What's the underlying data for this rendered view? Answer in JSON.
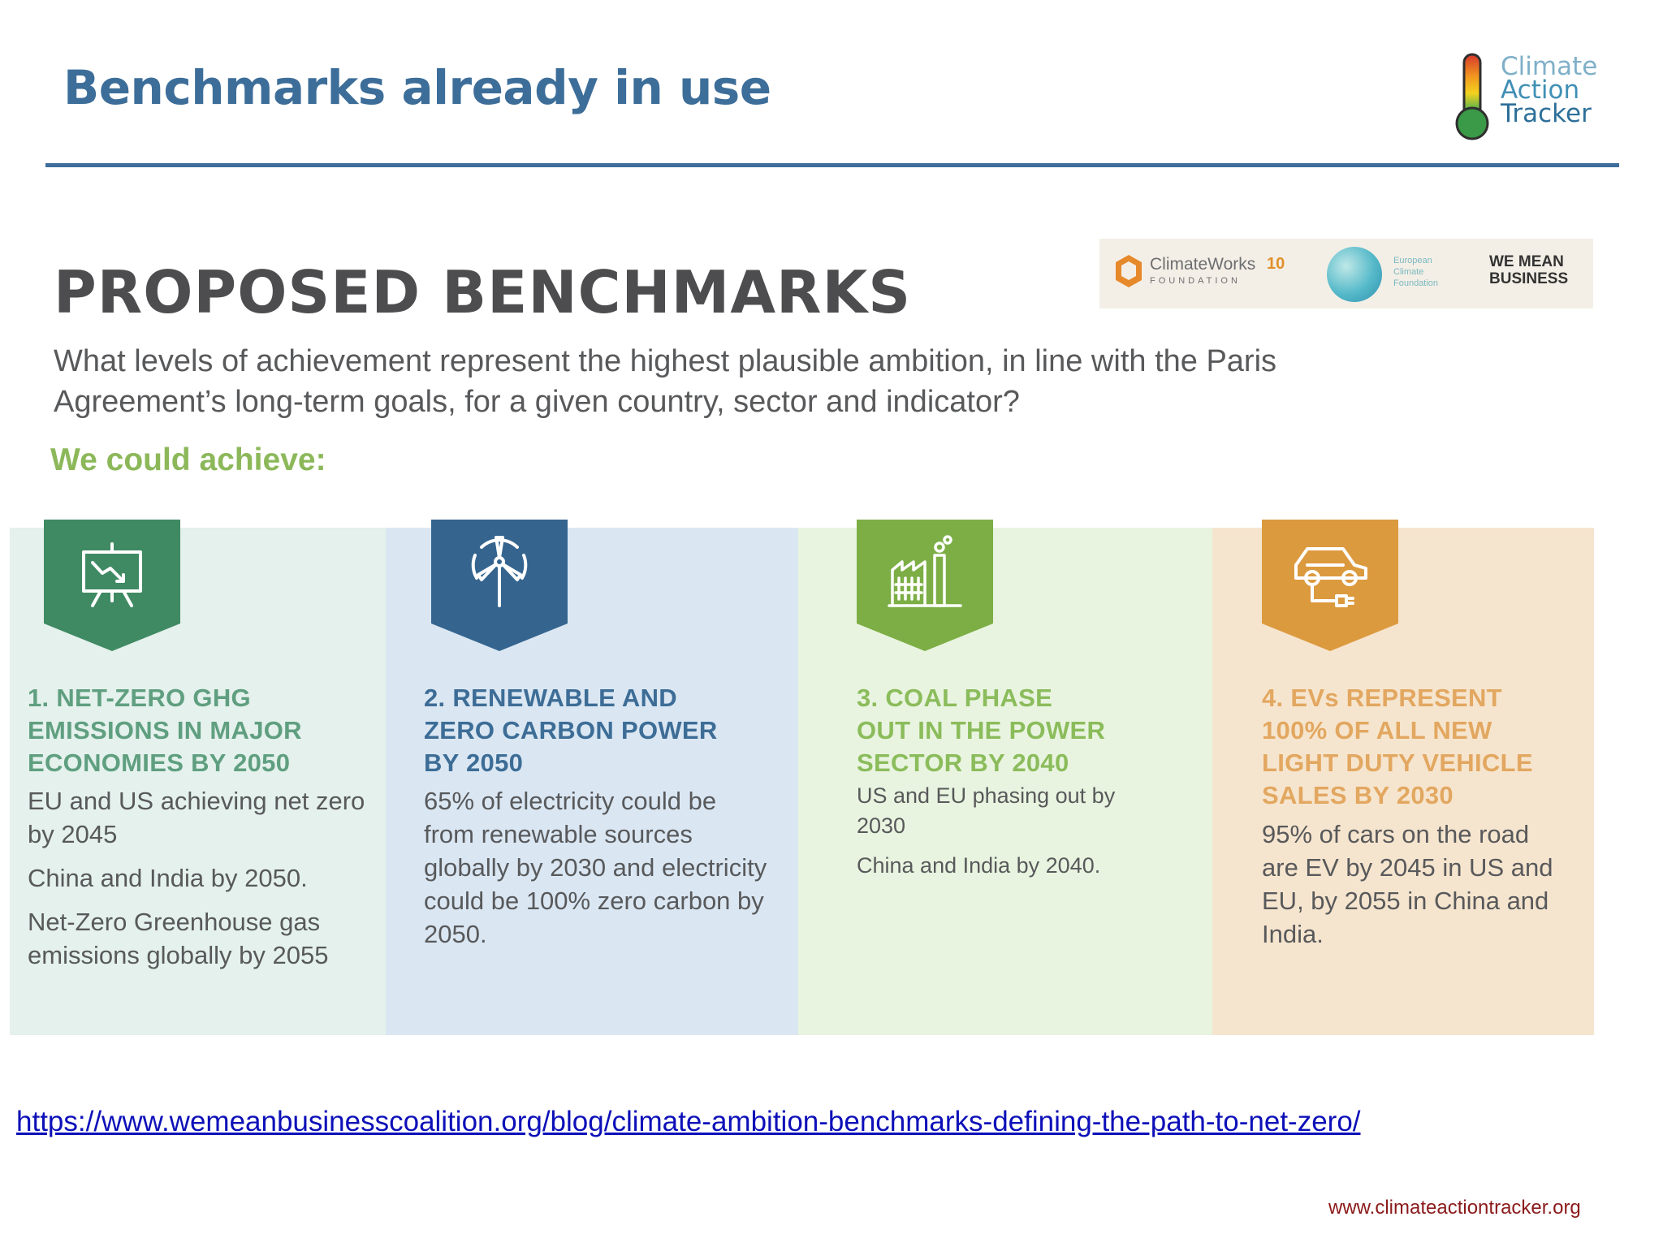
{
  "slide": {
    "title": "Benchmarks already in use",
    "logo": [
      "Climate",
      "Action",
      "Tracker"
    ]
  },
  "infographic": {
    "heading": "PROPOSED BENCHMARKS",
    "subheading": "What levels of achievement represent the highest plausible ambition, in line with the Paris Agreement’s long-term goals, for a given country, sector and indicator?",
    "achieve_label": "We could achieve:",
    "partners": {
      "climateworks_name": "ClimateWorks",
      "climateworks_sub": "FOUNDATION",
      "climateworks_badge": "10",
      "ecf": [
        "European",
        "Climate",
        "Foundation"
      ],
      "wmb": [
        "WE MEAN",
        "BUSINESS"
      ]
    },
    "columns": [
      {
        "icon": "presentation-chart-icon",
        "color": "#3f8a63",
        "head": [
          "1. NET-ZERO GHG",
          "EMISSIONS IN MAJOR",
          "ECONOMIES BY 2050"
        ],
        "body": [
          "EU and US achieving net zero by 2045",
          "China and India by 2050.",
          "Net-Zero Greenhouse gas emissions globally by 2055"
        ]
      },
      {
        "icon": "wind-turbine-icon",
        "color": "#35658f",
        "head": [
          "2. RENEWABLE AND",
          "ZERO CARBON POWER",
          "BY 2050"
        ],
        "body": [
          "65% of electricity could be from renewable sources globally by 2030 and electricity could be 100% zero carbon by 2050."
        ]
      },
      {
        "icon": "factory-icon",
        "color": "#7cae45",
        "head": [
          "3. COAL PHASE",
          "OUT IN THE POWER",
          "SECTOR BY 2040"
        ],
        "body": [
          "US and EU phasing out by 2030",
          "China and India by 2040."
        ]
      },
      {
        "icon": "electric-car-icon",
        "color": "#dc9a3e",
        "head": [
          "4. EVs REPRESENT",
          "100% OF ALL NEW",
          "LIGHT DUTY VEHICLE",
          "SALES BY 2030"
        ],
        "body": [
          "95% of cars on the road are EV by 2045 in US and EU, by 2055 in China and India."
        ]
      }
    ]
  },
  "source_link": "https://www.wemeanbusinesscoalition.org/blog/climate-ambition-benchmarks-defining-the-path-to-net-zero/",
  "footer_url": "www.climateactiontracker.org"
}
